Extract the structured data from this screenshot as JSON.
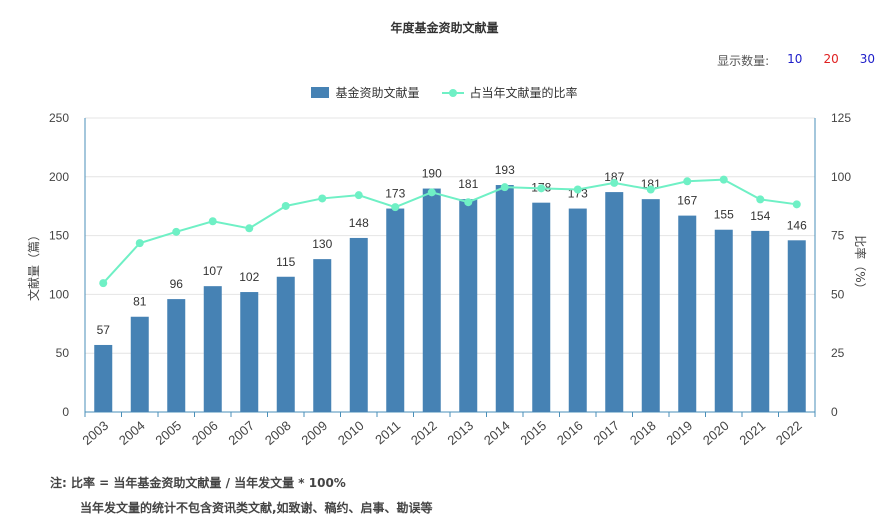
{
  "chart_data": {
    "type": "bar",
    "title": "年度基金资助文献量",
    "categories": [
      "2003",
      "2004",
      "2005",
      "2006",
      "2007",
      "2008",
      "2009",
      "2010",
      "2011",
      "2012",
      "2013",
      "2014",
      "2015",
      "2016",
      "2017",
      "2018",
      "2019",
      "2020",
      "2021",
      "2022"
    ],
    "series": [
      {
        "name": "基金资助文献量",
        "type": "bar",
        "axis": "left",
        "color": "#4682b4",
        "values": [
          57,
          81,
          96,
          107,
          102,
          115,
          130,
          148,
          173,
          190,
          181,
          193,
          178,
          173,
          187,
          181,
          167,
          155,
          154,
          146
        ]
      },
      {
        "name": "占当年文献量的比率",
        "type": "line",
        "axis": "right",
        "color": "#6ff0c5",
        "values": [
          54.8,
          71.8,
          76.6,
          81.1,
          78.1,
          87.6,
          90.8,
          92.2,
          87.1,
          93.4,
          89.2,
          95.6,
          95.1,
          94.6,
          97.4,
          94.6,
          98.1,
          98.8,
          90.4,
          88.3
        ]
      }
    ],
    "ylabel": "文献量（篇）",
    "y2label": "比率（%）",
    "ylim": [
      0,
      250
    ],
    "y2lim": [
      0,
      125
    ],
    "yticks": [
      0,
      50,
      100,
      150,
      200,
      250
    ],
    "y2ticks": [
      0,
      25,
      50,
      75,
      100,
      125
    ],
    "grid": true,
    "legend_position": "top-center"
  },
  "display_count": {
    "label": "显示数量:",
    "options": [
      {
        "text": "10",
        "color": "#1d1dc9"
      },
      {
        "text": "20",
        "color": "#e02020"
      },
      {
        "text": "30",
        "color": "#1d1dc9"
      }
    ]
  },
  "notes": {
    "line1": "注:  比率 = 当年基金资助文献量 / 当年发文量 * 100%",
    "line2": "当年发文量的统计不包含资讯类文献,如致谢、稿约、启事、勘误等"
  }
}
